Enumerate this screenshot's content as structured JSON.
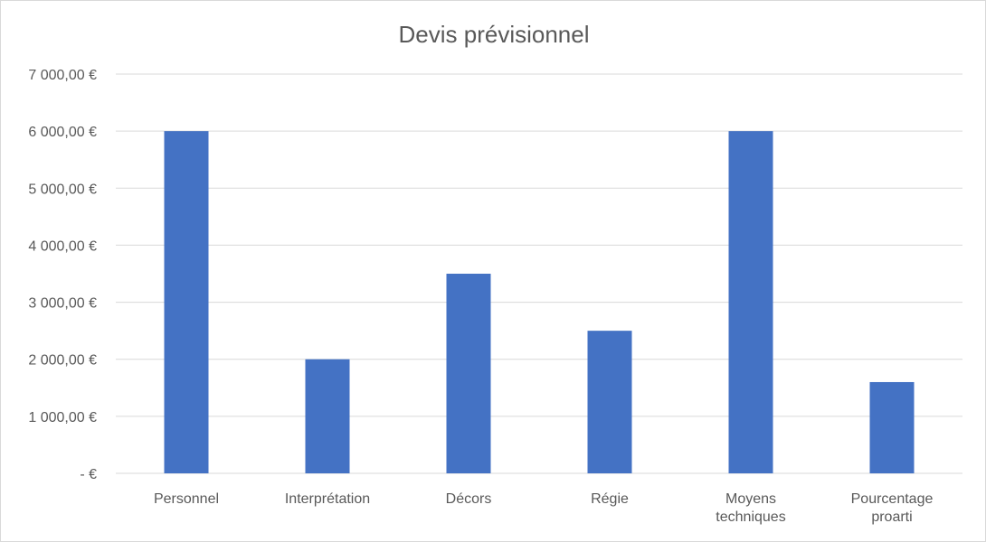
{
  "chart_data": {
    "type": "bar",
    "title": "Devis prévisionnel",
    "categories": [
      [
        "Personnel"
      ],
      [
        "Interprétation"
      ],
      [
        "Décors"
      ],
      [
        "Régie"
      ],
      [
        "Moyens",
        "techniques"
      ],
      [
        "Pourcentage",
        "proarti"
      ]
    ],
    "values": [
      6000,
      2000,
      3500,
      2500,
      6000,
      1600
    ],
    "ylim": [
      0,
      7000
    ],
    "yticks": [
      {
        "value": 0,
        "label": "-   €"
      },
      {
        "value": 1000,
        "label": "1 000,00 €"
      },
      {
        "value": 2000,
        "label": "2 000,00 €"
      },
      {
        "value": 3000,
        "label": "3 000,00 €"
      },
      {
        "value": 4000,
        "label": "4 000,00 €"
      },
      {
        "value": 5000,
        "label": "5 000,00 €"
      },
      {
        "value": 6000,
        "label": "6 000,00 €"
      },
      {
        "value": 7000,
        "label": "7 000,00 €"
      }
    ],
    "xlabel": "",
    "ylabel": "",
    "grid": true,
    "legend": "none",
    "bar_color": "#4472c4"
  }
}
